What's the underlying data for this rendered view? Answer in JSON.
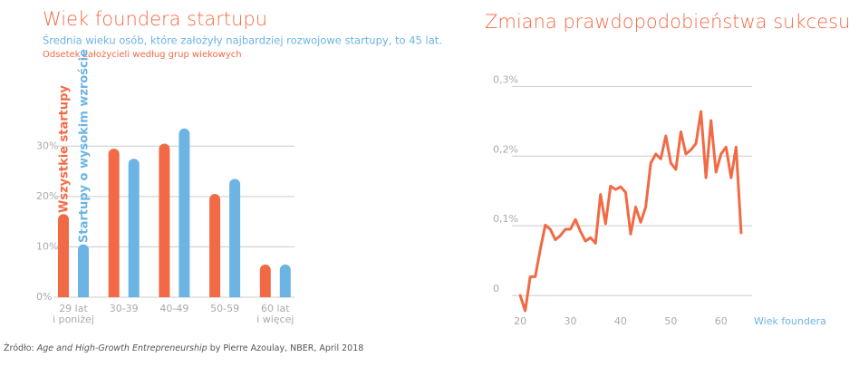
{
  "chart_data": [
    {
      "type": "bar",
      "title": "Wiek foundera startupu",
      "subtitle": "Średnia wieku osób, które założyły najbardziej rozwojowe startupy, to 45 lat.",
      "subtitle2": "Odsetek założycieli według grup wiekowych",
      "categories": [
        "29 lat\ni poniżej",
        "30-39",
        "40-49",
        "50-59",
        "60 lat\ni więcej"
      ],
      "series": [
        {
          "name": "Wszystkie startupy",
          "color": "#f26a45",
          "values": [
            16.5,
            29.5,
            30.5,
            20.5,
            6.5
          ]
        },
        {
          "name": "Startupy o wysokim wzroście",
          "color": "#6cb4e4",
          "values": [
            10.5,
            27.5,
            33.5,
            23.5,
            6.5
          ]
        }
      ],
      "ylim": [
        0,
        43
      ],
      "yticks": [
        {
          "value": 0,
          "label": "0%"
        },
        {
          "value": 10,
          "label": "10%"
        },
        {
          "value": 20,
          "label": "20%"
        },
        {
          "value": 30,
          "label": "30%"
        }
      ],
      "grid": true
    },
    {
      "type": "line",
      "title": "Zmiana prawdopodobieństwa sukcesu",
      "xlabel": "Wiek foundera",
      "x": [
        20,
        21,
        22,
        23,
        24,
        25,
        26,
        27,
        28,
        29,
        30,
        31,
        32,
        33,
        34,
        35,
        36,
        37,
        38,
        39,
        40,
        41,
        42,
        43,
        44,
        45,
        46,
        47,
        48,
        49,
        50,
        51,
        52,
        53,
        54,
        55,
        56,
        57,
        58,
        59,
        60,
        61,
        62,
        63,
        64
      ],
      "values": [
        0,
        -0.022,
        0.027,
        0.027,
        0.066,
        0.101,
        0.095,
        0.08,
        0.086,
        0.095,
        0.095,
        0.109,
        0.092,
        0.078,
        0.083,
        0.075,
        0.145,
        0.103,
        0.157,
        0.152,
        0.156,
        0.148,
        0.088,
        0.127,
        0.105,
        0.127,
        0.19,
        0.203,
        0.196,
        0.229,
        0.19,
        0.181,
        0.235,
        0.203,
        0.209,
        0.218,
        0.264,
        0.169,
        0.251,
        0.177,
        0.203,
        0.213,
        0.169,
        0.213,
        0.09
      ],
      "color": "#f26a45",
      "xlim": [
        18,
        66
      ],
      "xticks": [
        20,
        30,
        40,
        50,
        60
      ],
      "ylim": [
        -0.035,
        0.32
      ],
      "yticks": [
        0,
        {
          "value": 0.1,
          "label": "0,1%"
        },
        {
          "value": 0.2,
          "label": "0,2%"
        },
        {
          "value": 0.3,
          "label": "0,3%"
        }
      ],
      "grid": true
    }
  ],
  "source": {
    "prefix": "Źródło: ",
    "title": "Age and High-Growth Entrepreneurship",
    "suffix": " by Pierre Azoulay, NBER, April 2018"
  }
}
